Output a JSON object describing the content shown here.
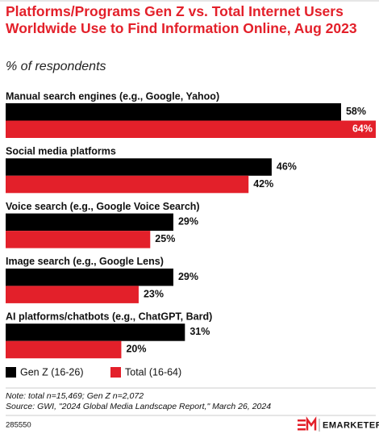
{
  "chart_data": {
    "type": "bar",
    "orientation": "horizontal",
    "title": "Platforms/Programs Gen Z vs. Total Internet Users Worldwide Use to Find Information Online, Aug 2023",
    "subtitle": "% of respondents",
    "categories": [
      "Manual search engines (e.g., Google, Yahoo)",
      "Social media platforms",
      "Voice search (e.g., Google Voice Search)",
      "Image search (e.g., Google Lens)",
      "AI platforms/chatbots (e.g., ChatGPT, Bard)"
    ],
    "series": [
      {
        "name": "Gen Z (16-26)",
        "color": "#000000",
        "values": [
          58,
          46,
          29,
          29,
          31
        ],
        "value_labels": [
          "58%",
          "46%",
          "29%",
          "29%",
          "31%"
        ]
      },
      {
        "name": "Total (16-64)",
        "color": "#e3202a",
        "values": [
          64,
          42,
          25,
          23,
          20
        ],
        "value_labels": [
          "64%",
          "42%",
          "25%",
          "23%",
          "20%"
        ]
      }
    ],
    "xlim": [
      0,
      64
    ],
    "legend": "bottom-left",
    "note": "Note: total n=15,469; Gen Z n=2,072",
    "source": "Source: GWI, \"2024 Global Media Landscape Report,\" March 26, 2024",
    "chart_id": "285550",
    "brand": "EMARKETER"
  }
}
